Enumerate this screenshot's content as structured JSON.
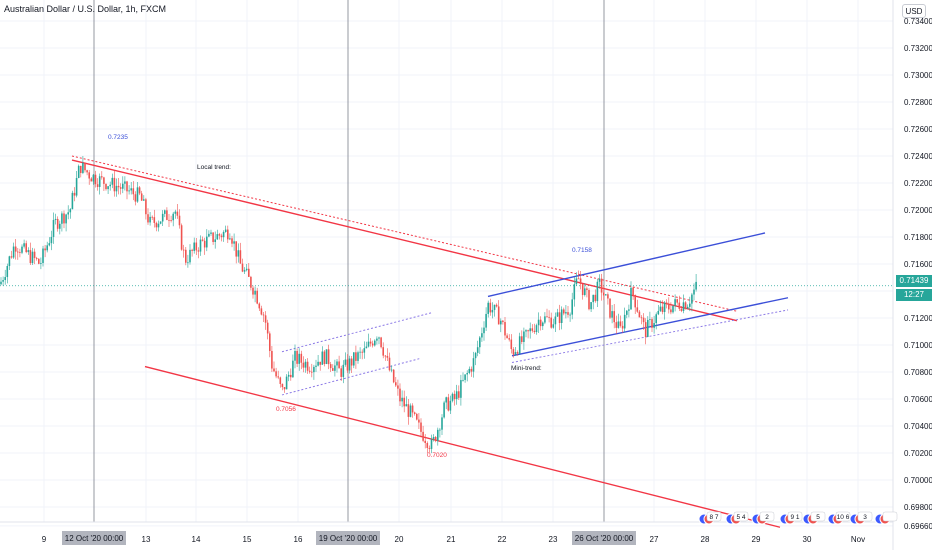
{
  "header": {
    "title": "Australian Dollar / U.S. Dollar, 1h, FXCM",
    "currency": "USD",
    "last_price": "0.71439",
    "countdown": "12:27"
  },
  "x_axis": {
    "ticks": [
      "9",
      "13",
      "14",
      "15",
      "16",
      "20",
      "21",
      "22",
      "23",
      "27",
      "28",
      "29",
      "30",
      "Nov"
    ],
    "highlighted": [
      "12 Oct '20   00:00",
      "19 Oct '20   00:00",
      "26 Oct '20   00:00"
    ]
  },
  "annotations": {
    "high_1": "0.7235",
    "local_trend": "Local trend:",
    "low_1": "0.7056",
    "low_2": "0.7020",
    "high_2": "0.7158",
    "mini_trend": "Mini-trend:"
  },
  "events": [
    "8",
    "7",
    "5",
    "4",
    "2",
    "9",
    "1",
    "5",
    "10",
    "6",
    "3"
  ],
  "colors": {
    "up": "#26a69a",
    "down": "#ef5350",
    "red_line": "#f23645",
    "blue_line": "#3b4fd8",
    "grid": "#f0f3fa",
    "session": "#9598a1"
  },
  "chart_data": {
    "type": "candlestick",
    "symbol": "AUDUSD",
    "timeframe": "1h",
    "ylim": [
      0.6955,
      0.7355
    ],
    "y_ticks": [
      0.6966,
      0.698,
      0.7,
      0.702,
      0.704,
      0.706,
      0.708,
      0.71,
      0.712,
      0.714,
      0.716,
      0.718,
      0.72,
      0.722,
      0.724,
      0.726,
      0.728,
      0.73,
      0.732,
      0.734
    ],
    "y_tick_labels": [
      "0.69660",
      "0.69800",
      "0.70000",
      "0.70200",
      "0.70400",
      "0.70600",
      "0.70800",
      "0.71000",
      "0.71200",
      "0.71400",
      "0.71600",
      "0.71800",
      "0.72000",
      "0.72200",
      "0.72400",
      "0.72600",
      "0.72800",
      "0.73000",
      "0.73200",
      "0.73400"
    ],
    "price_path": [
      [
        0,
        0.7145
      ],
      [
        15,
        0.7175
      ],
      [
        40,
        0.716
      ],
      [
        55,
        0.719
      ],
      [
        70,
        0.72
      ],
      [
        80,
        0.7233
      ],
      [
        90,
        0.7226
      ],
      [
        100,
        0.7222
      ],
      [
        120,
        0.7217
      ],
      [
        140,
        0.721
      ],
      [
        150,
        0.719
      ],
      [
        165,
        0.7195
      ],
      [
        175,
        0.72
      ],
      [
        185,
        0.7163
      ],
      [
        200,
        0.7175
      ],
      [
        215,
        0.718
      ],
      [
        230,
        0.7185
      ],
      [
        240,
        0.716
      ],
      [
        255,
        0.714
      ],
      [
        265,
        0.712
      ],
      [
        272,
        0.7085
      ],
      [
        282,
        0.7065
      ],
      [
        295,
        0.709
      ],
      [
        310,
        0.7085
      ],
      [
        325,
        0.7092
      ],
      [
        340,
        0.708
      ],
      [
        355,
        0.709
      ],
      [
        365,
        0.7095
      ],
      [
        378,
        0.711
      ],
      [
        390,
        0.708
      ],
      [
        400,
        0.706
      ],
      [
        410,
        0.705
      ],
      [
        420,
        0.7037
      ],
      [
        432,
        0.7025
      ],
      [
        445,
        0.7055
      ],
      [
        455,
        0.706
      ],
      [
        465,
        0.7075
      ],
      [
        475,
        0.709
      ],
      [
        488,
        0.713
      ],
      [
        500,
        0.712
      ],
      [
        512,
        0.7095
      ],
      [
        525,
        0.7105
      ],
      [
        540,
        0.712
      ],
      [
        555,
        0.7118
      ],
      [
        570,
        0.7128
      ],
      [
        578,
        0.715
      ],
      [
        590,
        0.713
      ],
      [
        600,
        0.7145
      ],
      [
        610,
        0.7125
      ],
      [
        620,
        0.711
      ],
      [
        632,
        0.714
      ],
      [
        645,
        0.711
      ],
      [
        660,
        0.7125
      ],
      [
        675,
        0.713
      ],
      [
        688,
        0.7132
      ],
      [
        697,
        0.7144
      ]
    ],
    "trend_lines": [
      {
        "name": "Local trend",
        "color": "red",
        "style": "solid",
        "from": [
          72,
          0.7237
        ],
        "to": [
          737,
          0.7118
        ]
      },
      {
        "name": "Local trend",
        "color": "red",
        "style": "dotted",
        "from": [
          72,
          0.724
        ],
        "to": [
          737,
          0.7125
        ]
      },
      {
        "color": "red",
        "style": "solid",
        "from": [
          145,
          0.7084
        ],
        "to": [
          780,
          0.6965
        ]
      },
      {
        "color": "violet",
        "style": "dotted",
        "from": [
          282,
          0.7063
        ],
        "to": [
          420,
          0.709
        ]
      },
      {
        "color": "violet",
        "style": "dotted",
        "from": [
          282,
          0.7095
        ],
        "to": [
          432,
          0.7124
        ]
      },
      {
        "name": "Mini-trend",
        "color": "blue",
        "style": "solid",
        "from": [
          488,
          0.7136
        ],
        "to": [
          765,
          0.7183
        ]
      },
      {
        "name": "Mini-trend",
        "color": "blue",
        "style": "solid",
        "from": [
          512,
          0.7092
        ],
        "to": [
          788,
          0.7135
        ]
      },
      {
        "color": "violet",
        "style": "dotted",
        "from": [
          512,
          0.7087
        ],
        "to": [
          788,
          0.7126
        ]
      }
    ]
  }
}
